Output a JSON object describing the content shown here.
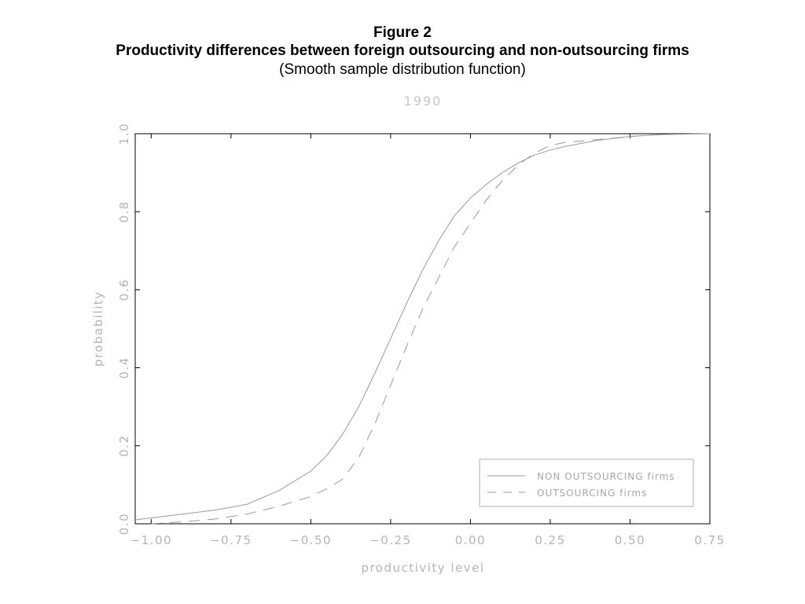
{
  "figure": {
    "number": "Figure 2",
    "title": "Productivity differences between foreign outsourcing and non-outsourcing firms",
    "subtitle": "(Smooth sample distribution function)"
  },
  "chart_data": {
    "type": "line",
    "title": "1990",
    "xlabel": "productivity level",
    "ylabel": "probability",
    "xlim": [
      -1.05,
      0.75
    ],
    "ylim": [
      0.0,
      1.0
    ],
    "x_ticks": [
      -1.0,
      -0.75,
      -0.5,
      -0.25,
      0.0,
      0.25,
      0.5,
      0.75
    ],
    "x_tick_labels": [
      "−1.00",
      "−0.75",
      "−0.50",
      "−0.25",
      "0.00",
      "0.25",
      "0.50",
      "0.75"
    ],
    "y_ticks": [
      0.0,
      0.2,
      0.4,
      0.6,
      0.8,
      1.0
    ],
    "y_tick_labels": [
      "0.0",
      "0.2",
      "0.4",
      "0.6",
      "0.8",
      "1.0"
    ],
    "grid": false,
    "legend_position": "bottom-right",
    "axis_color": "#000000",
    "text_color": "#b4b4b4",
    "series": [
      {
        "name": "NON OUTSOURCING firms",
        "style": "solid",
        "color": "#9a9a9a",
        "points": [
          [
            -1.05,
            0.01
          ],
          [
            -0.9,
            0.025
          ],
          [
            -0.8,
            0.035
          ],
          [
            -0.7,
            0.05
          ],
          [
            -0.6,
            0.085
          ],
          [
            -0.5,
            0.135
          ],
          [
            -0.45,
            0.175
          ],
          [
            -0.4,
            0.23
          ],
          [
            -0.35,
            0.3
          ],
          [
            -0.3,
            0.385
          ],
          [
            -0.25,
            0.475
          ],
          [
            -0.2,
            0.565
          ],
          [
            -0.15,
            0.65
          ],
          [
            -0.1,
            0.725
          ],
          [
            -0.05,
            0.79
          ],
          [
            0.0,
            0.835
          ],
          [
            0.05,
            0.87
          ],
          [
            0.1,
            0.9
          ],
          [
            0.15,
            0.925
          ],
          [
            0.2,
            0.945
          ],
          [
            0.25,
            0.958
          ],
          [
            0.3,
            0.968
          ],
          [
            0.4,
            0.983
          ],
          [
            0.5,
            0.993
          ],
          [
            0.6,
            0.998
          ],
          [
            0.75,
            1.0
          ]
        ]
      },
      {
        "name": "OUTSOURCING firms",
        "style": "dashed",
        "color": "#9a9a9a",
        "points": [
          [
            -1.0,
            0.0
          ],
          [
            -0.9,
            0.005
          ],
          [
            -0.8,
            0.012
          ],
          [
            -0.7,
            0.025
          ],
          [
            -0.6,
            0.045
          ],
          [
            -0.5,
            0.07
          ],
          [
            -0.45,
            0.09
          ],
          [
            -0.4,
            0.115
          ],
          [
            -0.35,
            0.17
          ],
          [
            -0.3,
            0.255
          ],
          [
            -0.25,
            0.355
          ],
          [
            -0.2,
            0.455
          ],
          [
            -0.15,
            0.55
          ],
          [
            -0.1,
            0.63
          ],
          [
            -0.05,
            0.71
          ],
          [
            0.0,
            0.77
          ],
          [
            0.05,
            0.83
          ],
          [
            0.1,
            0.88
          ],
          [
            0.15,
            0.92
          ],
          [
            0.2,
            0.95
          ],
          [
            0.25,
            0.97
          ],
          [
            0.3,
            0.978
          ],
          [
            0.4,
            0.985
          ],
          [
            0.5,
            0.993
          ],
          [
            0.6,
            0.998
          ],
          [
            0.75,
            1.0
          ]
        ]
      }
    ]
  }
}
